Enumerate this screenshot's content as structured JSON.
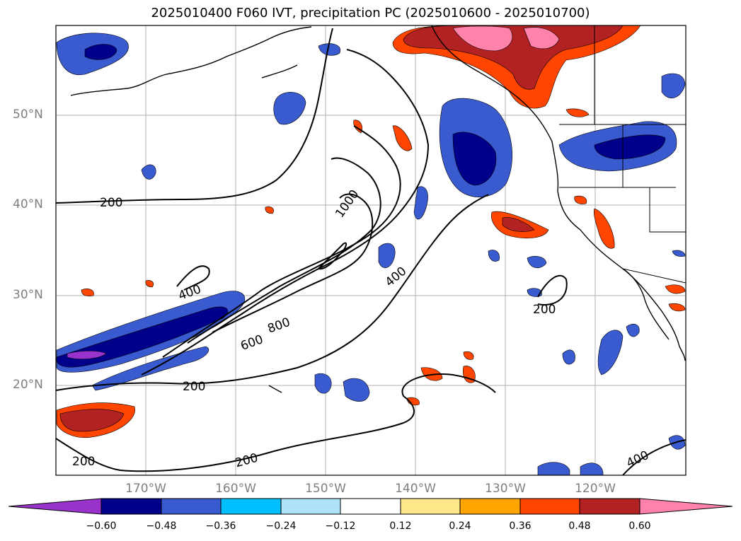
{
  "title": "2025010400 F060 IVT, precipitation PC (2025010600 - 2025010700)",
  "lat_ticks": [
    "50°N",
    "40°N",
    "30°N",
    "20°N"
  ],
  "lon_ticks": [
    "170°W",
    "160°W",
    "150°W",
    "140°W",
    "130°W",
    "120°W"
  ],
  "contour_labels": [
    "200",
    "1000",
    "400",
    "400",
    "200",
    "800",
    "600",
    "200",
    "200",
    "200",
    "400"
  ],
  "colorbar": {
    "labels": [
      "−0.60",
      "−0.48",
      "−0.36",
      "−0.24",
      "−0.12",
      "0.12",
      "0.24",
      "0.36",
      "0.48",
      "0.60"
    ],
    "colors": [
      "#9933cc",
      "#00008b",
      "#3a5bd0",
      "#00bfff",
      "#aee3fa",
      "#ffffff",
      "#fde98a",
      "#ffa500",
      "#ff4500",
      "#b22222",
      "#ff82ab"
    ]
  }
}
